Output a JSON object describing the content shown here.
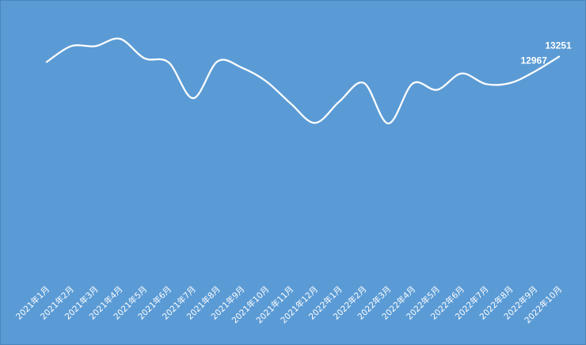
{
  "chart_data": {
    "type": "line",
    "title": "",
    "xlabel": "",
    "ylabel": "",
    "categories": [
      "2021年1月",
      "2021年2月",
      "2021年3月",
      "2021年4月",
      "2021年5月",
      "2021年6月",
      "2021年7月",
      "2021年8月",
      "2021年9月",
      "2021年10月",
      "2021年11月",
      "2021年12月",
      "2022年1月",
      "2022年2月",
      "2022年3月",
      "2022年4月",
      "2022年5月",
      "2022年6月",
      "2022年7月",
      "2022年8月",
      "2022年9月",
      "2022年10月"
    ],
    "series": [
      {
        "values": [
          13150,
          13450,
          13450,
          13590,
          13220,
          13140,
          12460,
          13160,
          13040,
          12780,
          12360,
          11990,
          12400,
          12750,
          11980,
          12740,
          12620,
          12930,
          12730,
          12750,
          12967,
          13251
        ]
      }
    ],
    "data_labels": [
      {
        "index": 20,
        "text": "12967"
      },
      {
        "index": 21,
        "text": "13251"
      }
    ],
    "ylim": [
      0,
      14200
    ],
    "grid": "vertical",
    "line_color": "#ffffff",
    "background_color": "#5b9bd5"
  }
}
